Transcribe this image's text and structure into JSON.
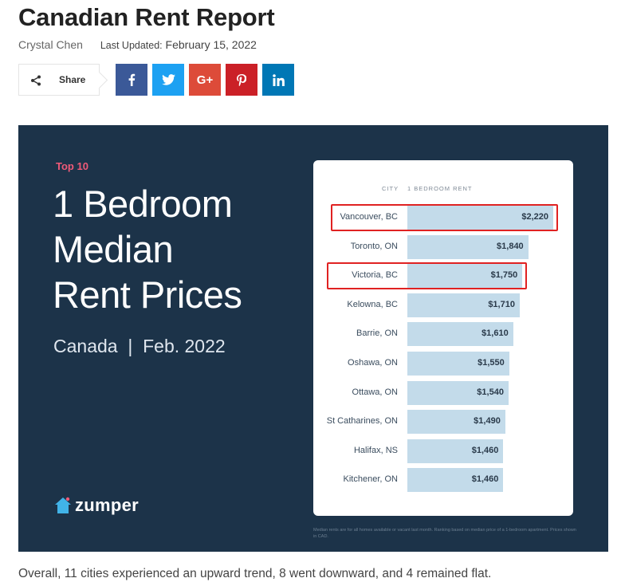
{
  "article": {
    "title": "Canadian Rent Report",
    "author": "Crystal Chen",
    "updated_label": "Last Updated:",
    "updated_date": "February 15, 2022",
    "share_label": "Share",
    "social": [
      {
        "name": "facebook",
        "glyph": "f",
        "color": "#3b5998"
      },
      {
        "name": "twitter",
        "glyph": "twitter-bird",
        "color": "#1da1f2"
      },
      {
        "name": "google-plus",
        "glyph": "G+",
        "color": "#dd4b39"
      },
      {
        "name": "pinterest",
        "glyph": "P",
        "color": "#cb2027"
      },
      {
        "name": "linkedin",
        "glyph": "in",
        "color": "#0077b5"
      }
    ],
    "caption": "Overall, 11 cities experienced an upward trend, 8 went downward, and 4 remained flat."
  },
  "infographic": {
    "top_label": "Top 10",
    "headline": [
      "1 Bedroom",
      "Median",
      "Rent Prices"
    ],
    "subtitle": "Canada  |  Feb. 2022",
    "brand": "zumper",
    "footnote": "Median rents are for all homes available or vacant last month. Ranking based on median price of a 1-bedroom apartment. Prices shown in CAD.",
    "colors": {
      "background": "#1c3349",
      "accent": "#ef5a78",
      "bar": "#c3dbea",
      "highlight": "#e02222"
    }
  },
  "chart_data": {
    "type": "bar",
    "orientation": "horizontal",
    "xlabel": "1 BEDROOM RENT",
    "ylabel": "CITY",
    "categories": [
      "Vancouver, BC",
      "Toronto, ON",
      "Victoria, BC",
      "Kelowna, BC",
      "Barrie, ON",
      "Oshawa, ON",
      "Ottawa, ON",
      "St Catharines, ON",
      "Halifax, NS",
      "Kitchener, ON"
    ],
    "values": [
      2220,
      1840,
      1750,
      1710,
      1610,
      1550,
      1540,
      1490,
      1460,
      1460
    ],
    "value_labels": [
      "$2,220",
      "$1,840",
      "$1,750",
      "$1,710",
      "$1,610",
      "$1,550",
      "$1,540",
      "$1,490",
      "$1,460",
      "$1,460"
    ],
    "highlighted": [
      "Vancouver, BC",
      "Victoria, BC"
    ]
  }
}
